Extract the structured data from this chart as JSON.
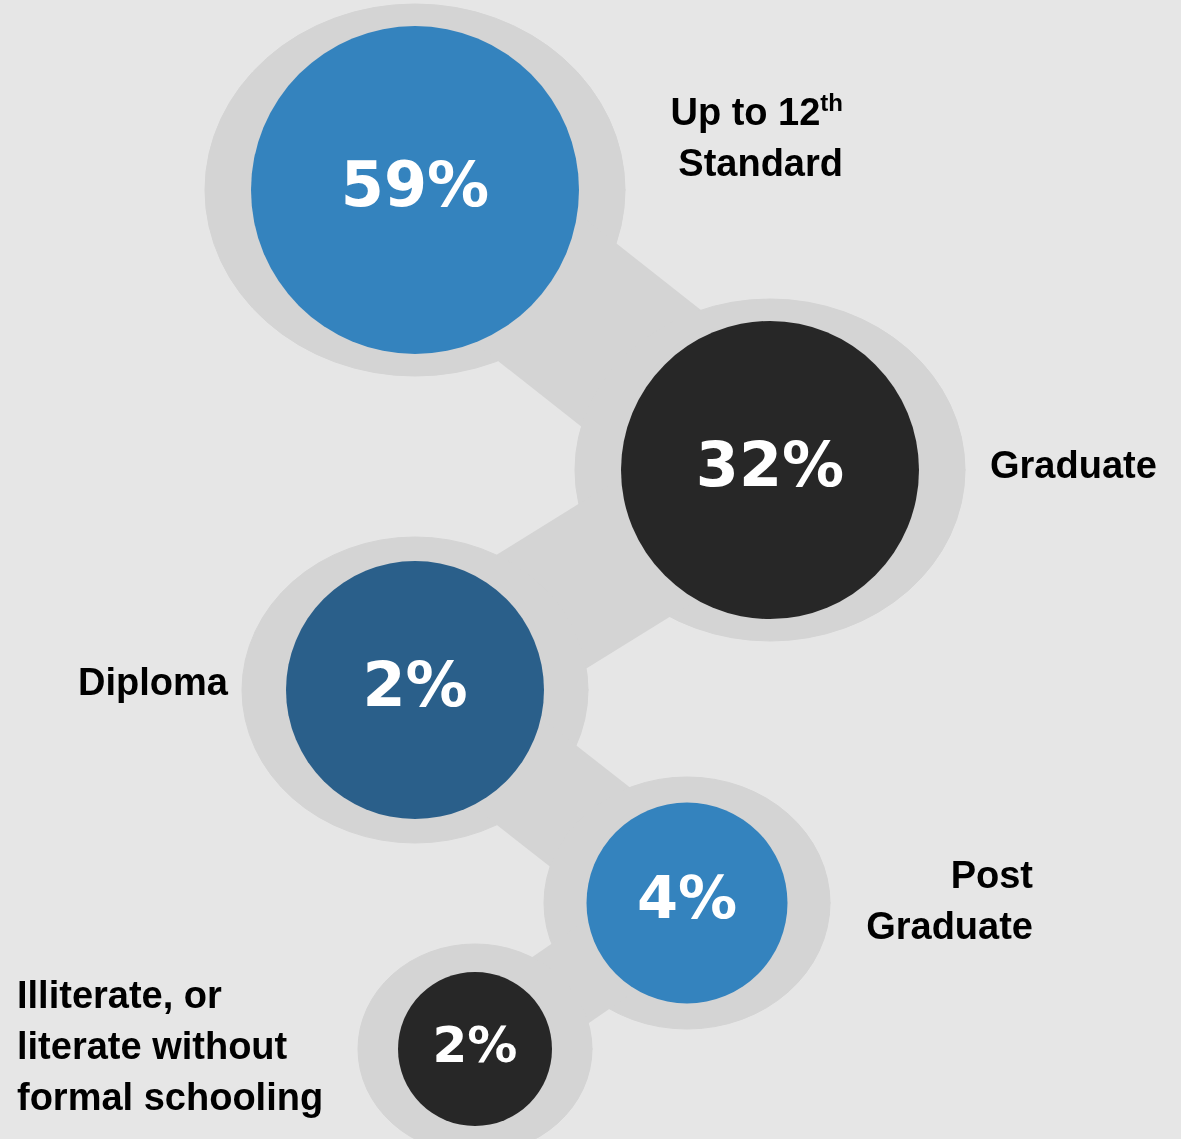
{
  "chart_data": {
    "type": "other",
    "categories": [
      "Up to 12$^{th}$\nStandard",
      "Graduate",
      "Diploma",
      "Post\nGraduate",
      "Illiterate, or\nliterate without\nformal schooling"
    ],
    "values": [
      59,
      32,
      2,
      4,
      2
    ],
    "value_labels": [
      "59%",
      "32%",
      "2%",
      "4%",
      "2%"
    ],
    "colors": [
      "#3483be",
      "#272727",
      "#2a5f8a",
      "#3483be",
      "#272727"
    ]
  }
}
